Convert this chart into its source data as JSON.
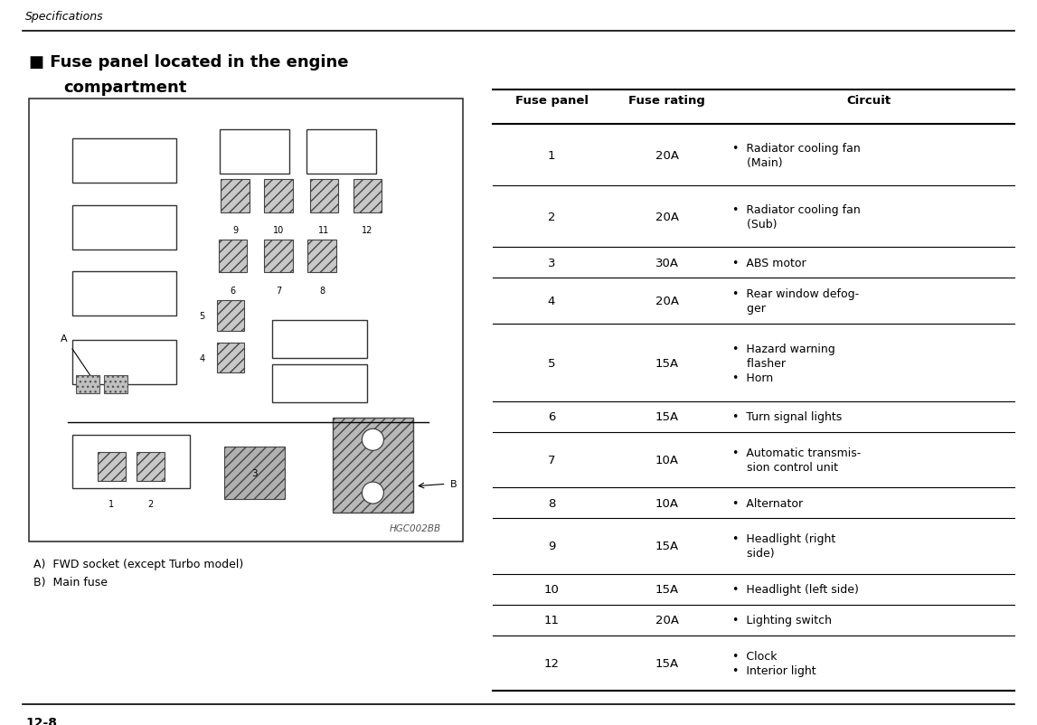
{
  "header_text": "Specifications",
  "page_number": "12-8",
  "section_title_line1": "■ Fuse panel located in the engine",
  "section_title_line2": "compartment",
  "diagram_label": "HGC002BB",
  "legend_a": "A)  FWD socket (except Turbo model)",
  "legend_b": "B)  Main fuse",
  "table_headers": [
    "Fuse panel",
    "Fuse rating",
    "Circuit"
  ],
  "table_rows": [
    {
      "num": "1",
      "rating": "20A",
      "circuit_lines": [
        "Radiator cooling fan",
        "(Main)"
      ],
      "bullets": [
        true,
        false
      ]
    },
    {
      "num": "2",
      "rating": "20A",
      "circuit_lines": [
        "Radiator cooling fan",
        "(Sub)"
      ],
      "bullets": [
        true,
        false
      ]
    },
    {
      "num": "3",
      "rating": "30A",
      "circuit_lines": [
        "ABS motor"
      ],
      "bullets": [
        true
      ]
    },
    {
      "num": "4",
      "rating": "20A",
      "circuit_lines": [
        "Rear window defog-",
        "ger"
      ],
      "bullets": [
        true,
        false
      ]
    },
    {
      "num": "5",
      "rating": "15A",
      "circuit_lines": [
        "Hazard warning",
        "flasher",
        "Horn"
      ],
      "bullets": [
        true,
        false,
        true
      ]
    },
    {
      "num": "6",
      "rating": "15A",
      "circuit_lines": [
        "Turn signal lights"
      ],
      "bullets": [
        true
      ]
    },
    {
      "num": "7",
      "rating": "10A",
      "circuit_lines": [
        "Automatic transmis-",
        "sion control unit"
      ],
      "bullets": [
        true,
        false
      ]
    },
    {
      "num": "8",
      "rating": "10A",
      "circuit_lines": [
        "Alternator"
      ],
      "bullets": [
        true
      ]
    },
    {
      "num": "9",
      "rating": "15A",
      "circuit_lines": [
        "Headlight (right",
        "side)"
      ],
      "bullets": [
        true,
        false
      ]
    },
    {
      "num": "10",
      "rating": "15A",
      "circuit_lines": [
        "Headlight (left side)"
      ],
      "bullets": [
        true
      ]
    },
    {
      "num": "11",
      "rating": "20A",
      "circuit_lines": [
        "Lighting switch"
      ],
      "bullets": [
        true
      ]
    },
    {
      "num": "12",
      "rating": "15A",
      "circuit_lines": [
        "Clock",
        "Interior light"
      ],
      "bullets": [
        true,
        true
      ]
    }
  ],
  "bg_color": "#ffffff",
  "text_color": "#000000",
  "row_heights_norm": [
    2.0,
    2.0,
    1.0,
    1.5,
    2.5,
    1.0,
    1.8,
    1.0,
    1.8,
    1.0,
    1.0,
    1.8
  ]
}
